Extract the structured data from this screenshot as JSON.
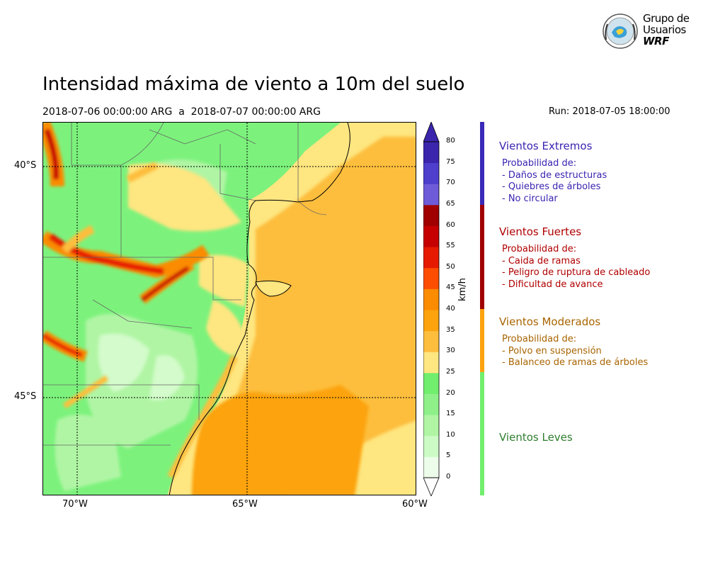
{
  "header": {
    "title": "Intensidad máxima de viento a 10m del suelo",
    "subtitle": "2018-07-06 00:00:00 ARG  a  2018-07-07 00:00:00 ARG",
    "run": "Run: 2018-07-05 18:00:00"
  },
  "logo": {
    "line1": "Grupo de",
    "line2": "Usuarios",
    "line3": "WRF"
  },
  "map": {
    "lat_labels": [
      "40°S",
      "45°S"
    ],
    "lon_labels": [
      "70°W",
      "65°W",
      "60°W"
    ]
  },
  "colorbar": {
    "unit": "km/h",
    "ticks": [
      "0",
      "5",
      "10",
      "15",
      "20",
      "25",
      "30",
      "35",
      "40",
      "45",
      "50",
      "55",
      "60",
      "65",
      "70",
      "75",
      "80"
    ],
    "colors": [
      "#ecfdea",
      "#cdfbc6",
      "#b0f5a4",
      "#8ff08a",
      "#72ee6e",
      "#fee680",
      "#fdbe3e",
      "#fca30e",
      "#fb8b00",
      "#fd4d00",
      "#e61a00",
      "#c60000",
      "#a00000",
      "#6e5bd8",
      "#4e3fcc",
      "#3c25ad"
    ]
  },
  "legend": {
    "categories": [
      {
        "title": "Vientos Extremos",
        "color": "#3a23b0",
        "intro": "Probabilidad de:",
        "lines": [
          "- Daños de estructuras",
          "- Quiebres de árboles",
          "- No circular"
        ]
      },
      {
        "title": "Vientos Fuertes",
        "color": "#b00000",
        "intro": "Probabilidad de:",
        "lines": [
          "- Caida de ramas",
          "- Peligro de ruptura de cableado",
          "- Dificultad de avance"
        ]
      },
      {
        "title": "Vientos Moderados",
        "color": "#a86400",
        "intro": "Probabilidad de:",
        "lines": [
          "- Polvo en suspensión",
          "- Balanceo de ramas de árboles"
        ]
      },
      {
        "title": "Vientos Leves",
        "color": "#2d7d2d",
        "intro": "",
        "lines": []
      }
    ],
    "bar_colors": [
      "#3a2ab8",
      "#a00000",
      "#fca30e",
      "#72ee6e"
    ]
  }
}
